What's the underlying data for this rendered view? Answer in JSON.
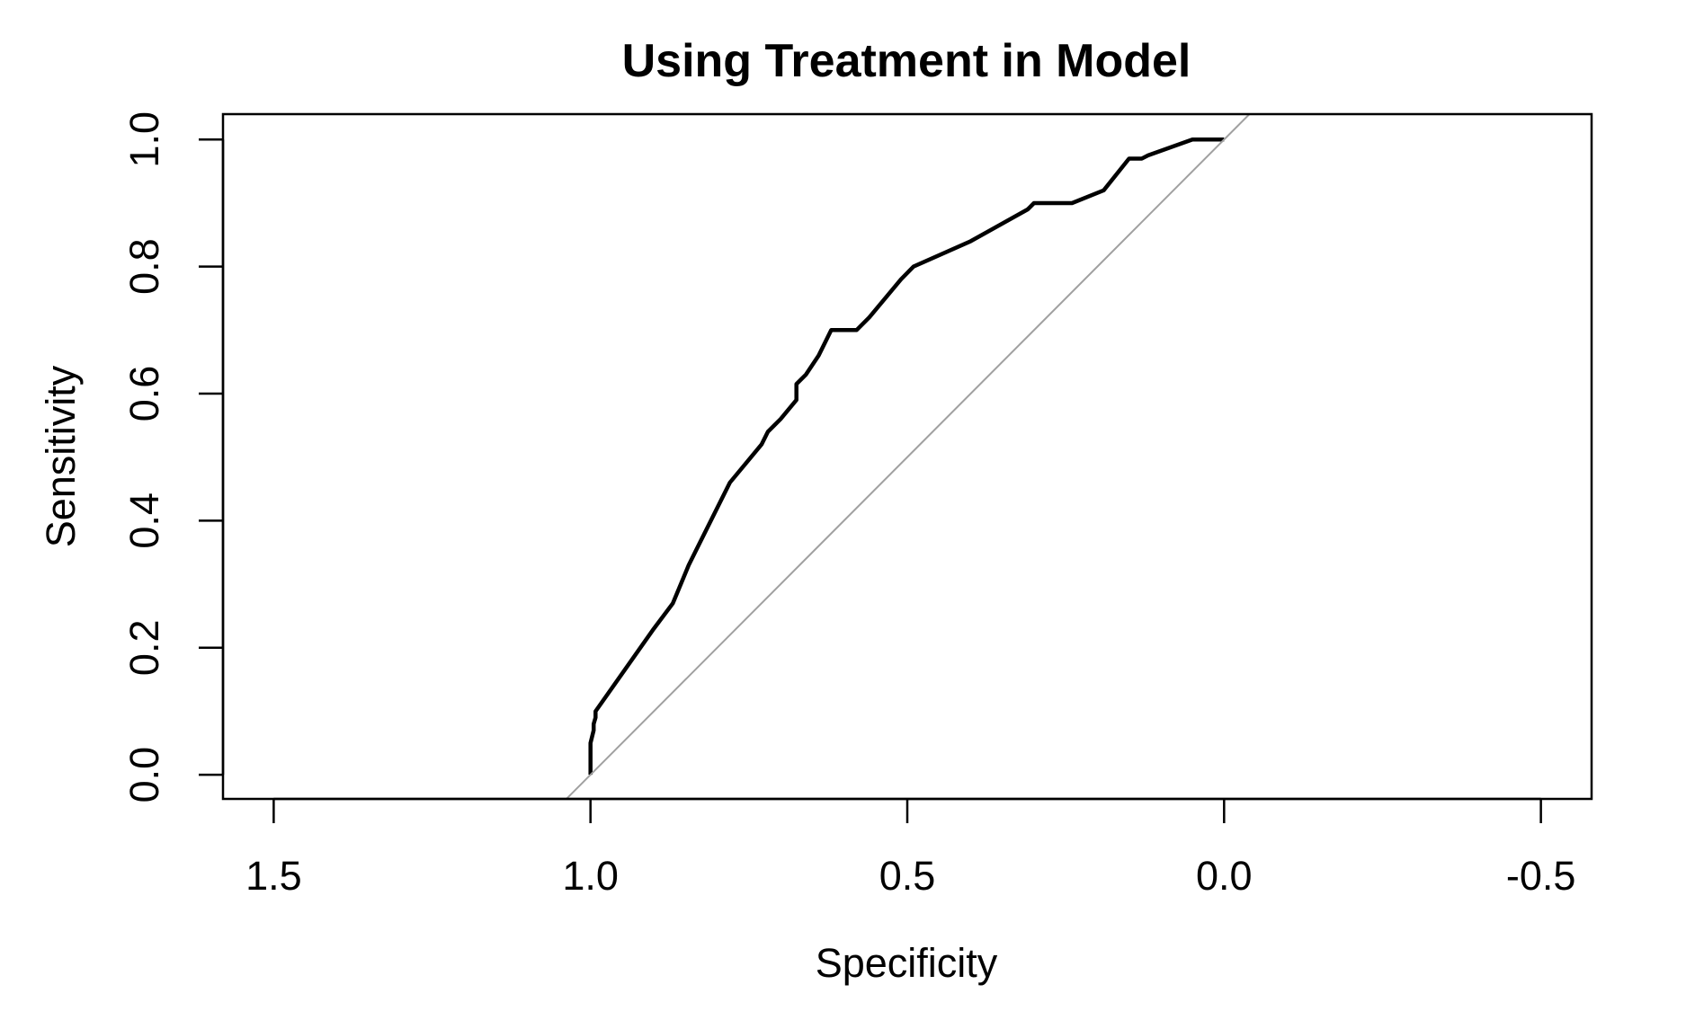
{
  "chart_data": {
    "type": "line",
    "title": "Using Treatment in Model",
    "xlabel": "Specificity",
    "ylabel": "Sensitivity",
    "xlim": [
      1.58,
      -0.58
    ],
    "ylim": [
      -0.038,
      1.04
    ],
    "x_reversed": true,
    "x_ticks": [
      1.5,
      1.0,
      0.5,
      0.0,
      -0.5
    ],
    "x_tick_labels": [
      "1.5",
      "1.0",
      "0.5",
      "0.0",
      "-0.5"
    ],
    "y_ticks": [
      0.0,
      0.2,
      0.4,
      0.6,
      0.8,
      1.0
    ],
    "y_tick_labels": [
      "0.0",
      "0.2",
      "0.4",
      "0.6",
      "0.8",
      "1.0"
    ],
    "grid": false,
    "legend": "none",
    "series": [
      {
        "color": "#000000",
        "x": [
          1.0,
          1.0,
          0.995,
          0.995,
          0.992,
          0.992,
          0.9,
          0.87,
          0.845,
          0.835,
          0.8,
          0.78,
          0.73,
          0.72,
          0.71,
          0.7,
          0.675,
          0.675,
          0.66,
          0.64,
          0.62,
          0.6,
          0.58,
          0.56,
          0.51,
          0.49,
          0.4,
          0.31,
          0.3,
          0.24,
          0.19,
          0.15,
          0.13,
          0.12,
          0.05,
          0.0
        ],
        "y": [
          0.0,
          0.05,
          0.07,
          0.08,
          0.09,
          0.1,
          0.23,
          0.27,
          0.33,
          0.35,
          0.42,
          0.46,
          0.52,
          0.54,
          0.55,
          0.56,
          0.59,
          0.615,
          0.63,
          0.66,
          0.7,
          0.7,
          0.7,
          0.72,
          0.78,
          0.8,
          0.84,
          0.89,
          0.9,
          0.9,
          0.92,
          0.97,
          0.97,
          0.975,
          1.0,
          1.0
        ]
      },
      {
        "color": "#a0a0a0",
        "x": [
          1.04,
          -0.04
        ],
        "y": [
          -0.04,
          1.04
        ]
      }
    ]
  }
}
